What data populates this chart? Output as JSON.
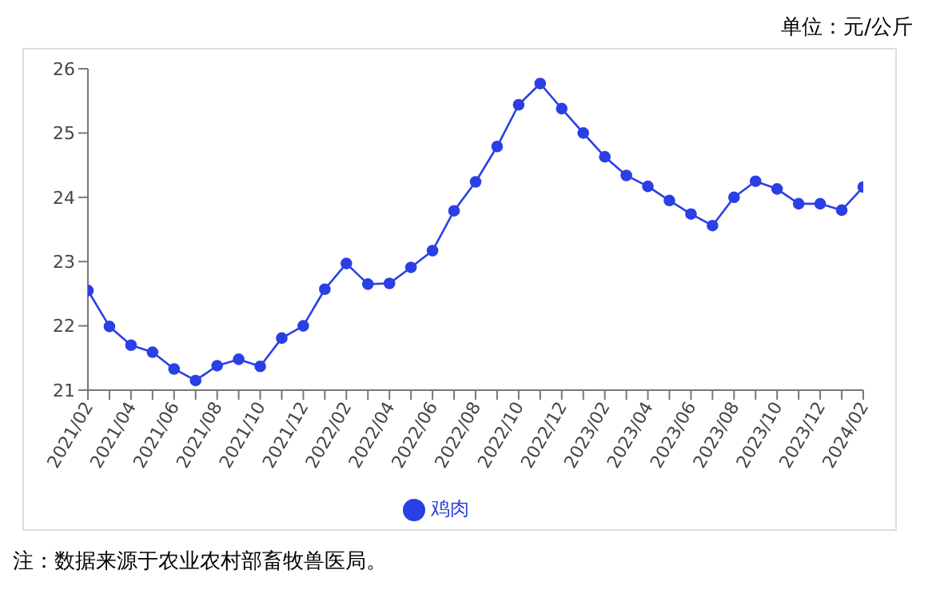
{
  "chart_data": {
    "type": "line",
    "annotations": [
      "单位：元/公斤",
      "注：数据来源于农业农村部畜牧兽医局。"
    ],
    "categories": [
      "2021/02",
      null,
      "2021/04",
      null,
      "2021/06",
      null,
      "2021/08",
      null,
      "2021/10",
      null,
      "2021/12",
      null,
      "2022/02",
      null,
      "2022/04",
      null,
      "2022/06",
      null,
      "2022/08",
      null,
      "2022/10",
      null,
      "2022/12",
      null,
      "2023/02",
      null,
      "2023/04",
      null,
      "2023/06",
      null,
      "2023/08",
      null,
      "2023/10",
      null,
      "2023/12",
      null,
      "2024/02"
    ],
    "series": [
      {
        "name": "鸡肉",
        "color": "#2b3fe6",
        "values": [
          22.55,
          21.99,
          21.7,
          21.59,
          21.33,
          21.15,
          21.38,
          21.48,
          21.37,
          21.81,
          22.0,
          22.57,
          22.97,
          22.65,
          22.66,
          22.91,
          23.17,
          23.79,
          24.24,
          24.79,
          25.44,
          25.77,
          25.38,
          25.0,
          24.63,
          24.34,
          24.17,
          23.95,
          23.74,
          23.56,
          24.0,
          24.25,
          24.13,
          23.9,
          23.9,
          23.8,
          24.16
        ]
      }
    ],
    "ylim": [
      21,
      26
    ],
    "yticks": [
      21,
      22,
      23,
      24,
      25,
      26
    ],
    "grid": false,
    "legend": "bottom",
    "marker": "circle",
    "line_style": "solid"
  }
}
